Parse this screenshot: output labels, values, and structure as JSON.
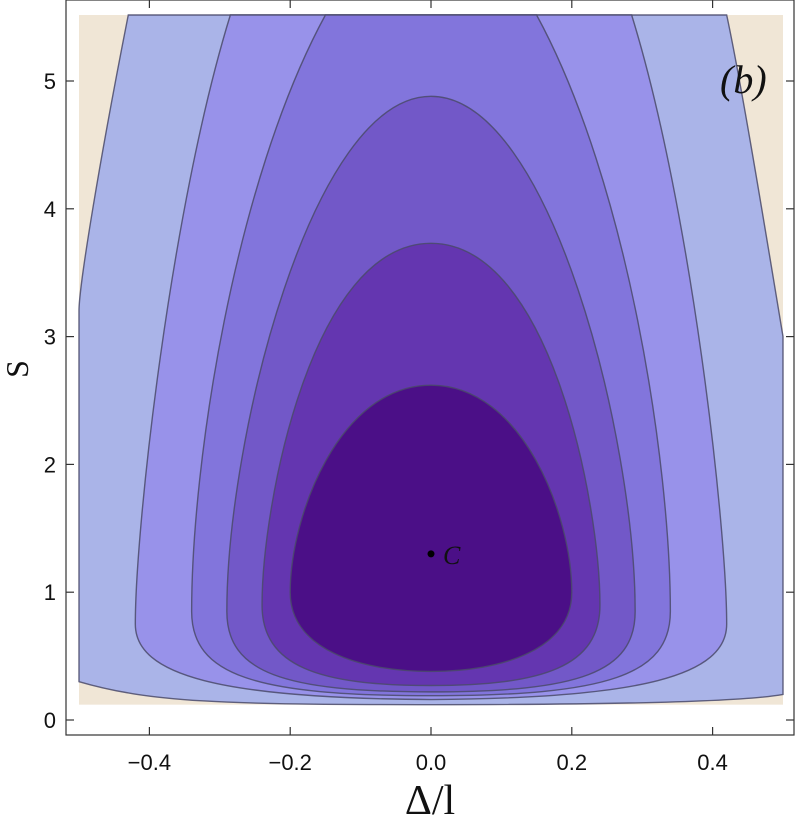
{
  "chart_data": {
    "type": "contour",
    "title": "",
    "panel_label": "(b)",
    "xlabel": "Δ/l",
    "ylabel": "S",
    "xlim": [
      -0.5,
      0.5
    ],
    "ylim": [
      0,
      5.5
    ],
    "x_ticks": [
      {
        "value": -0.4,
        "label": "−0.4"
      },
      {
        "value": -0.2,
        "label": "−0.2"
      },
      {
        "value": 0.0,
        "label": "0.0"
      },
      {
        "value": 0.2,
        "label": "0.2"
      },
      {
        "value": 0.4,
        "label": "0.4"
      }
    ],
    "y_ticks": [
      {
        "value": 0,
        "label": "0"
      },
      {
        "value": 1,
        "label": "1"
      },
      {
        "value": 2,
        "label": "2"
      },
      {
        "value": 3,
        "label": "3"
      },
      {
        "value": 4,
        "label": "4"
      },
      {
        "value": 5,
        "label": "5"
      }
    ],
    "background_color": "#f0e6d6",
    "colors": [
      "#aab4e8",
      "#9892ea",
      "#8275dc",
      "#7258c8",
      "#6436b0",
      "#4b0f87"
    ],
    "contours": [
      {
        "peak": 5.5,
        "bottom_left": 0.3,
        "bottom_right": 0.2,
        "curve_bottom": 0.12,
        "x_left_at_top": -0.5,
        "x_right_at_top": 0.5
      },
      {
        "peak": 5.5,
        "bottom_left": 0.33,
        "bottom_right": 0.33,
        "curve_bottom": 0.14,
        "x_left_at_top": -0.32,
        "x_right_at_top": 0.32
      },
      {
        "peak": 5.5,
        "bottom_left": 0.22,
        "bottom_right": 0.22,
        "curve_bottom": 0.16,
        "x_left_at_top": -0.15,
        "x_right_at_top": 0.15
      },
      {
        "peak": 4.88,
        "bottom_left": 0.2,
        "bottom_right": 0.2,
        "curve_bottom": 0.2
      },
      {
        "peak": 3.73,
        "bottom_left": 0.2,
        "bottom_right": 0.2,
        "curve_bottom": 0.27
      },
      {
        "peak": 2.62,
        "bottom_left": 0.2,
        "bottom_right": 0.2,
        "curve_bottom": 0.38
      }
    ],
    "points": [
      {
        "label": "C",
        "x": 0.0,
        "y": 1.3
      }
    ]
  }
}
